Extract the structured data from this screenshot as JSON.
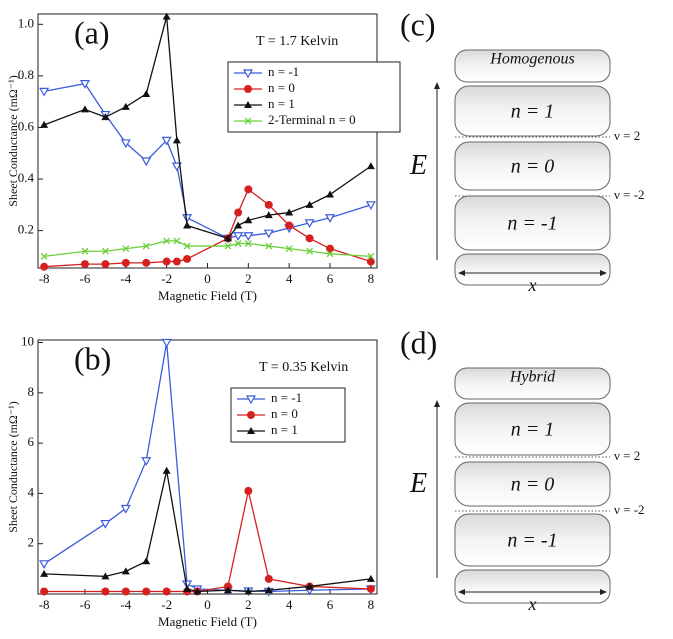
{
  "chart_data": [
    {
      "type": "line",
      "panel_label": "(a)",
      "annotation": "T = 1.7 Kelvin",
      "xlabel": "Magnetic Field (T)",
      "ylabel": "Sheet Conductance (mΩ⁻¹)",
      "x": [
        -8,
        -6,
        -5,
        -4,
        -3,
        -2,
        -1.5,
        -1,
        1,
        1.5,
        2,
        3,
        4,
        5,
        6,
        8
      ],
      "series": [
        {
          "name": "n = -1",
          "color": "#3b5bdb",
          "marker": "triangle-down-open",
          "values": [
            0.74,
            0.77,
            0.65,
            0.54,
            0.47,
            0.55,
            0.45,
            0.25,
            0.17,
            0.18,
            0.18,
            0.19,
            0.21,
            0.23,
            0.25,
            0.3
          ]
        },
        {
          "name": "n = 0",
          "color": "#d62020",
          "marker": "circle",
          "values": [
            0.06,
            0.07,
            0.07,
            0.075,
            0.075,
            0.08,
            0.08,
            0.09,
            0.17,
            0.27,
            0.36,
            0.3,
            0.22,
            0.17,
            0.13,
            0.08
          ]
        },
        {
          "name": "n = 1",
          "color": "#111111",
          "marker": "triangle",
          "values": [
            0.61,
            0.67,
            0.64,
            0.68,
            0.73,
            1.03,
            0.55,
            0.22,
            0.17,
            0.22,
            0.24,
            0.26,
            0.27,
            0.3,
            0.34,
            0.45
          ]
        },
        {
          "name": "2-Terminal n = 0",
          "color": "#6ccf3c",
          "marker": "x",
          "values": [
            0.1,
            0.12,
            0.12,
            0.13,
            0.14,
            0.16,
            0.16,
            0.14,
            0.14,
            0.15,
            0.15,
            0.14,
            0.13,
            0.12,
            0.11,
            0.1
          ]
        }
      ],
      "xlim": [
        -8.3,
        8.3
      ],
      "xticks": [
        -8,
        -6,
        -4,
        -2,
        0,
        2,
        4,
        6,
        8
      ],
      "ylim": [
        0.055,
        1.04
      ],
      "yticks": [
        0.2,
        0.4,
        0.6,
        0.8,
        {
          "value": 1,
          "label": "1.0"
        }
      ],
      "grid": false,
      "legend": "upper right"
    },
    {
      "type": "line",
      "panel_label": "(b)",
      "annotation": "T = 0.35 Kelvin",
      "xlabel": "Magnetic Field (T)",
      "ylabel": "Sheet Conductance (mΩ⁻¹)",
      "x": [
        -8,
        -5,
        -4,
        -3,
        -2,
        -1,
        -0.5,
        1,
        2,
        3,
        5,
        8
      ],
      "series": [
        {
          "name": "n = -1",
          "color": "#3b5bdb",
          "marker": "triangle-down-open",
          "values": [
            1.2,
            2.8,
            3.4,
            5.3,
            10,
            0.4,
            0.2,
            0.15,
            0.12,
            0.1,
            0.15,
            0.2
          ]
        },
        {
          "name": "n = 0",
          "color": "#d62020",
          "marker": "circle",
          "values": [
            0.1,
            0.1,
            0.1,
            0.1,
            0.1,
            0.1,
            0.1,
            0.3,
            4.1,
            0.6,
            0.3,
            0.2
          ]
        },
        {
          "name": "n = 1",
          "color": "#111111",
          "marker": "triangle",
          "values": [
            0.8,
            0.7,
            0.9,
            1.3,
            4.9,
            0.2,
            0.1,
            0.15,
            0.1,
            0.15,
            0.3,
            0.6
          ]
        }
      ],
      "xlim": [
        -8.3,
        8.3
      ],
      "xticks": [
        -8,
        -6,
        -4,
        -2,
        0,
        2,
        4,
        6,
        8
      ],
      "ylim": [
        0,
        10.1
      ],
      "yticks": [
        2,
        4,
        6,
        8,
        10
      ],
      "grid": false,
      "legend": "upper right"
    }
  ],
  "diagrams": [
    {
      "panel_label": "(c)",
      "title": "Homogenous",
      "energy_label": "E",
      "position_label": "x",
      "levels": [
        "n = 1",
        "n = 0",
        "n = -1"
      ],
      "filling_labels": [
        "ν = 2",
        "ν = -2"
      ]
    },
    {
      "panel_label": "(d)",
      "title": "Hybrid",
      "energy_label": "E",
      "position_label": "x",
      "levels": [
        "n = 1",
        "n = 0",
        "n = -1"
      ],
      "filling_labels": [
        "ν = 2",
        "ν = -2"
      ]
    }
  ]
}
